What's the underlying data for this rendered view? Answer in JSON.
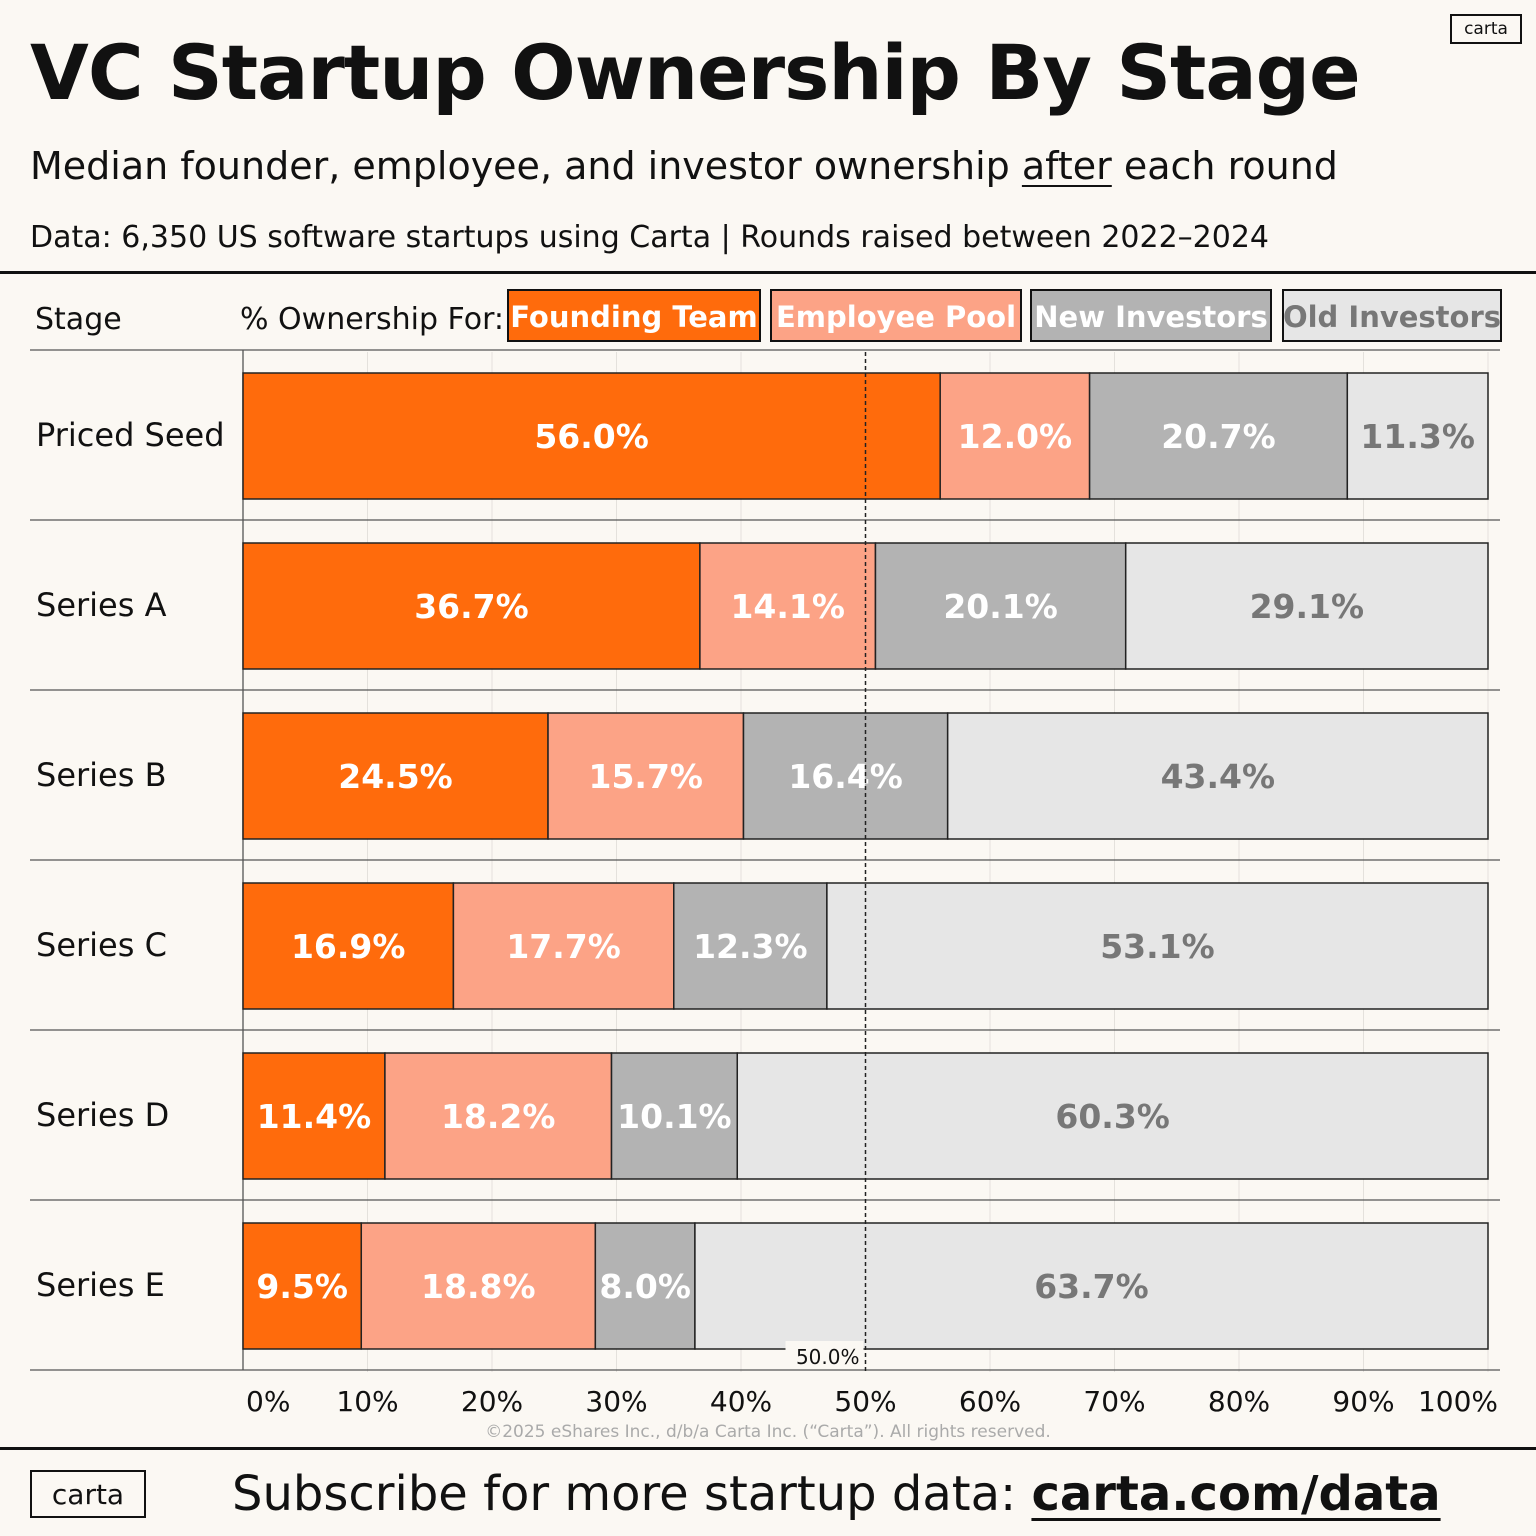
{
  "header": {
    "title": "VC Startup Ownership By Stage",
    "subtitle_before": "Median founder, employee, and investor ownership ",
    "subtitle_emph": "after",
    "subtitle_after": " each round",
    "data_line": "Data: 6,350 US software startups using Carta  |  Rounds raised between 2022–2024",
    "logo": "carta"
  },
  "colors": {
    "founding": "#ff6b0c",
    "employee": "#fca386",
    "new_inv": "#b3b3b3",
    "old_inv": "#e6e6e6",
    "dark_text": "#777777"
  },
  "chart_data": {
    "type": "bar",
    "orientation": "horizontal-stacked-100",
    "stage_header": "Stage",
    "legend_label": "% Ownership For:",
    "categories": [
      "Priced Seed",
      "Series A",
      "Series B",
      "Series C",
      "Series D",
      "Series E"
    ],
    "series": [
      {
        "name": "Founding Team",
        "key": "founding",
        "values": [
          56.0,
          36.7,
          24.5,
          16.9,
          11.4,
          9.5
        ]
      },
      {
        "name": "Employee Pool",
        "key": "employee",
        "values": [
          12.0,
          14.1,
          15.7,
          17.7,
          18.2,
          18.8
        ]
      },
      {
        "name": "New Investors",
        "key": "new_inv",
        "values": [
          20.7,
          20.1,
          16.4,
          12.3,
          10.1,
          8.0
        ]
      },
      {
        "name": "Old Investors",
        "key": "old_inv",
        "values": [
          11.3,
          29.1,
          43.4,
          53.1,
          60.3,
          63.7
        ]
      }
    ],
    "xlim": [
      0,
      100
    ],
    "x_ticks": [
      "0%",
      "10%",
      "20%",
      "30%",
      "40%",
      "50%",
      "60%",
      "70%",
      "80%",
      "90%",
      "100%"
    ],
    "reference_line": {
      "value": 50,
      "label": "50.0%"
    }
  },
  "footer": {
    "copyright": "©2025 eShares Inc., d/b/a Carta Inc. (“Carta”). All rights reserved.",
    "subscribe_text": "Subscribe for more startup data: ",
    "subscribe_link": "carta.com/data",
    "logo": "carta"
  }
}
